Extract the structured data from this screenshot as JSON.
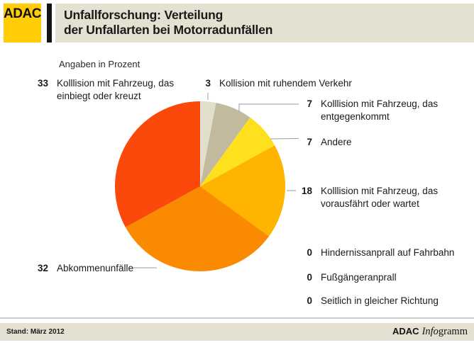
{
  "header": {
    "logo": "ADAC",
    "title_line1": "Unfallforschung: Verteilung",
    "title_line2": "der Unfallarten bei Motorradunfällen"
  },
  "subtitle": "Angaben in Prozent",
  "chart_data": {
    "type": "pie",
    "title": "Unfallforschung: Verteilung der Unfallarten bei Motorradunfällen",
    "subtitle": "Angaben in Prozent",
    "unit": "%",
    "start_angle_deg": 0,
    "direction": "clockwise",
    "slices": [
      {
        "label": "Kollision mit ruhendem Verkehr",
        "value": 3,
        "color": "#E2DECC"
      },
      {
        "label": "Kolllision mit Fahrzeug, das entgegenkommt",
        "value": 7,
        "color": "#C1BA9E"
      },
      {
        "label": "Andere",
        "value": 7,
        "color": "#FFE01E"
      },
      {
        "label": "Kolllision mit Fahrzeug, das vorausfährt oder wartet",
        "value": 18,
        "color": "#FFB400"
      },
      {
        "label": "Abkommenunfälle",
        "value": 32,
        "color": "#FA8A00"
      },
      {
        "label": "Kolllision mit Fahrzeug, das einbiegt oder kreuzt",
        "value": 33,
        "color": "#FA490A"
      }
    ],
    "zero_categories": [
      "Hindernissanprall auf Fahrbahn",
      "Fußgängeranprall",
      "Seitlich in gleicher Richtung"
    ]
  },
  "labels": {
    "einbiegt": {
      "value": "33",
      "text": "Kolllision mit Fahrzeug, das einbiegt oder kreuzt"
    },
    "ruhend": {
      "value": "3",
      "text": "Kollision mit ruhendem Verkehr"
    },
    "entgegen": {
      "value": "7",
      "text": "Kolllision mit Fahrzeug, das entgegenkommt"
    },
    "andere": {
      "value": "7",
      "text": "Andere"
    },
    "voraus": {
      "value": "18",
      "text": "Kolllision mit Fahrzeug, das vorausfährt oder wartet"
    },
    "abkommen": {
      "value": "32",
      "text": "Abkommenunfälle"
    },
    "hindernis": {
      "value": "0",
      "text": "Hindernissanprall auf Fahrbahn"
    },
    "fussgaenger": {
      "value": "0",
      "text": "Fußgängeranprall"
    },
    "seitlich": {
      "value": "0",
      "text": "Seitlich in gleicher Richtung"
    }
  },
  "footer": {
    "date": "Stand: März 2012",
    "brand_bold": "ADAC",
    "brand_italic": "Info",
    "brand_serif": "gramm"
  },
  "colors": {
    "adac_yellow": "#FFCC05",
    "panel_beige": "#E4E1D2",
    "connector_gray": "#9B9B9B",
    "text": "#1A1A1A"
  }
}
